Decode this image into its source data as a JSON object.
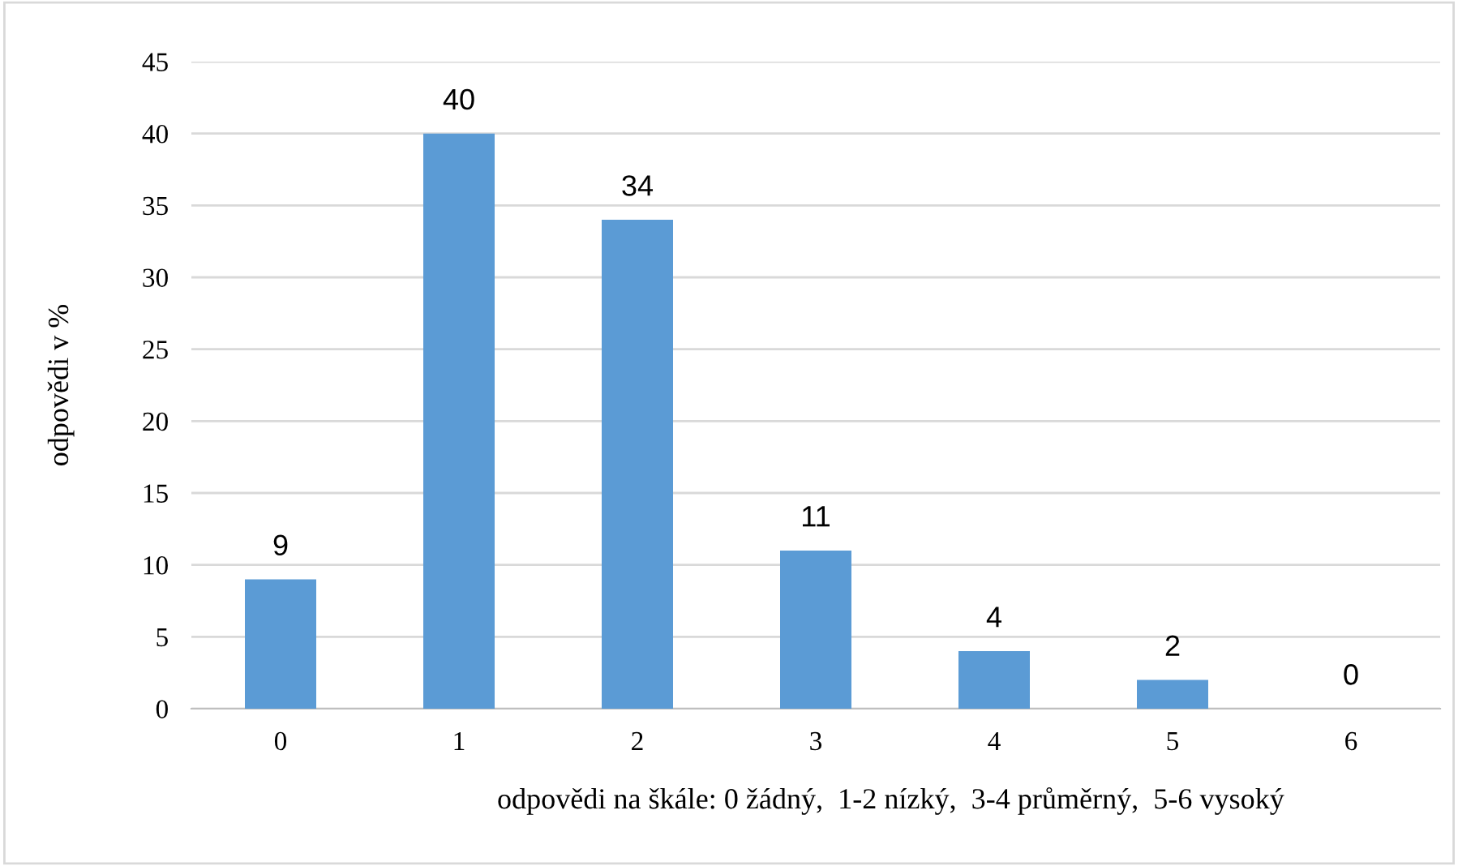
{
  "chart_data": {
    "type": "bar",
    "categories": [
      "0",
      "1",
      "2",
      "3",
      "4",
      "5",
      "6"
    ],
    "values": [
      9,
      40,
      34,
      11,
      4,
      2,
      0
    ],
    "color": "#5b9bd5",
    "xlabel": "odpovědi na škále: 0 žádný,  1-2 nízký,  3-4 průměrný,  5-6 vysoký",
    "ylabel": "odpovědi v %",
    "ylim": [
      0,
      45
    ],
    "yticks": [
      0,
      5,
      10,
      15,
      20,
      25,
      30,
      35,
      40,
      45
    ],
    "grid": "y",
    "data_labels": true
  }
}
